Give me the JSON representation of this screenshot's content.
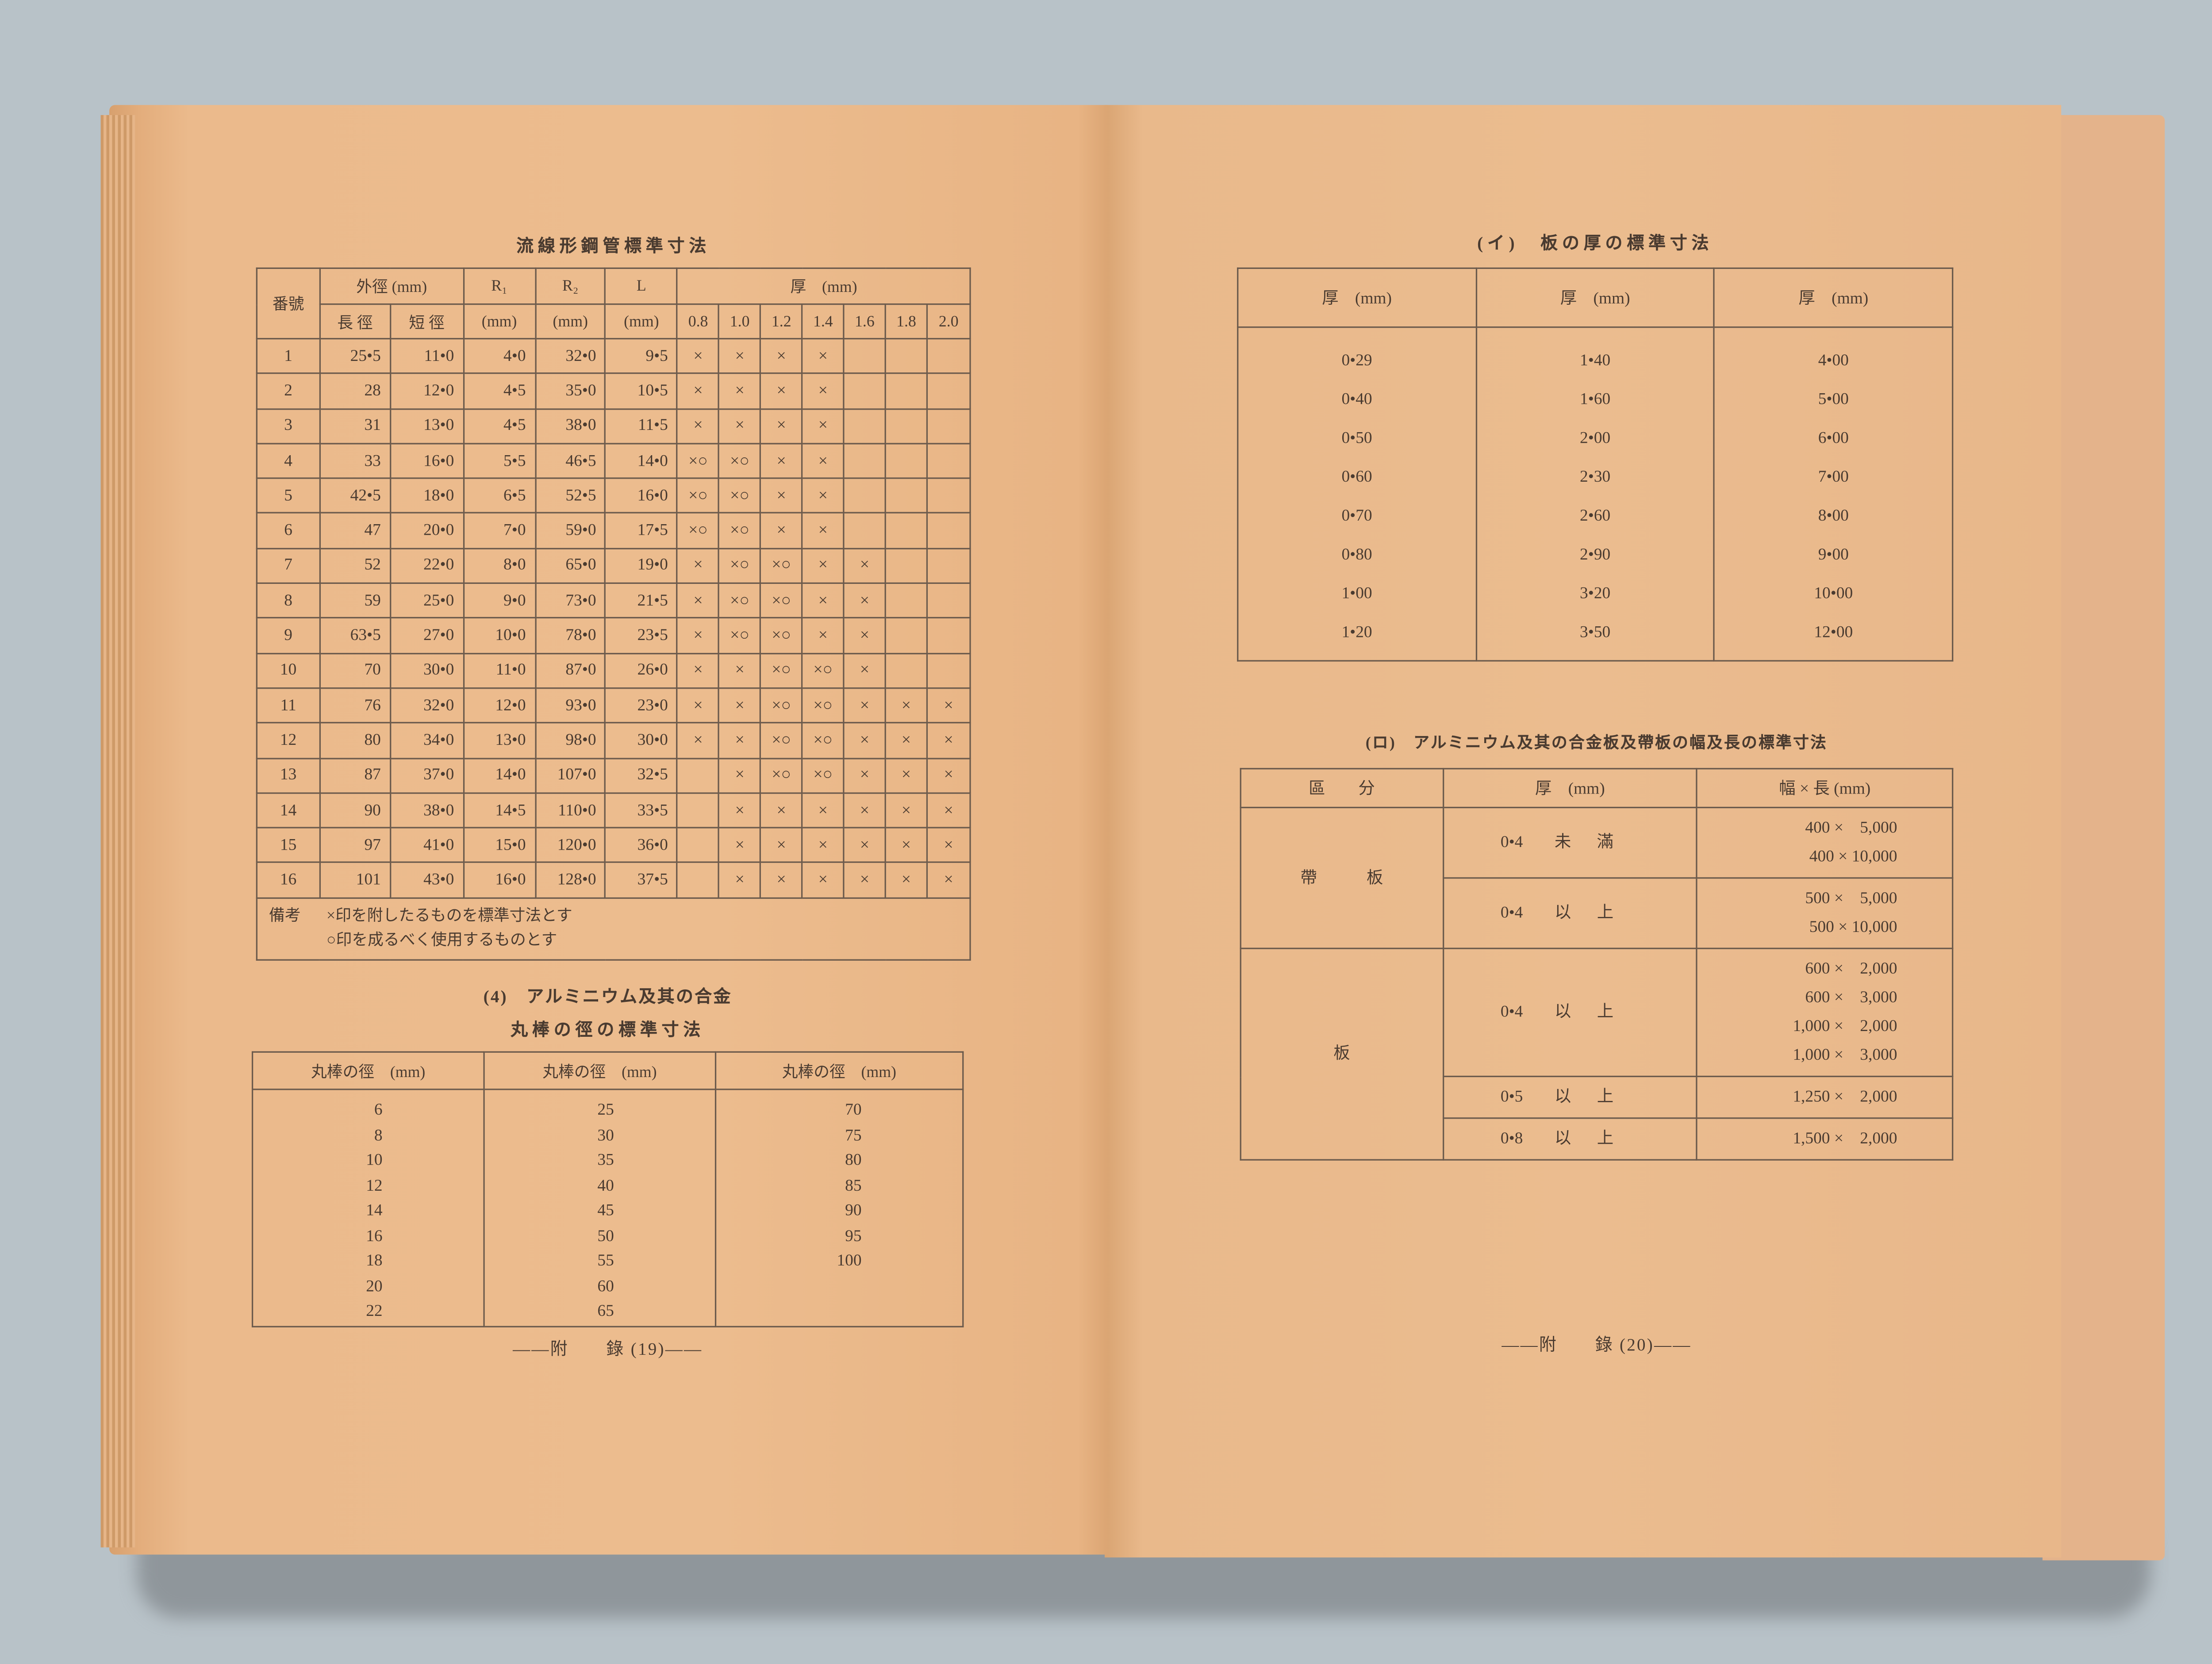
{
  "left_page": {
    "steel_tube_table": {
      "title": "流線形鋼管標準寸法",
      "headers": {
        "number": "番號",
        "outer_diameter": "外徑 (mm)",
        "major_diameter": "長 徑",
        "minor_diameter": "短 徑",
        "r1": "R₁",
        "r2": "R₂",
        "l": "L",
        "unit": "(mm)",
        "thickness": "厚　(mm)",
        "thickness_columns": [
          "0.8",
          "1.0",
          "1.2",
          "1.4",
          "1.6",
          "1.8",
          "2.0"
        ]
      },
      "rows": [
        {
          "no": "1",
          "major": "25•5",
          "minor": "11•0",
          "r1": "4•0",
          "r2": "32•0",
          "l": "9•5",
          "marks": [
            "×",
            "×",
            "×",
            "×",
            "",
            "",
            ""
          ]
        },
        {
          "no": "2",
          "major": "28",
          "minor": "12•0",
          "r1": "4•5",
          "r2": "35•0",
          "l": "10•5",
          "marks": [
            "×",
            "×",
            "×",
            "×",
            "",
            "",
            ""
          ]
        },
        {
          "no": "3",
          "major": "31",
          "minor": "13•0",
          "r1": "4•5",
          "r2": "38•0",
          "l": "11•5",
          "marks": [
            "×",
            "×",
            "×",
            "×",
            "",
            "",
            ""
          ]
        },
        {
          "no": "4",
          "major": "33",
          "minor": "16•0",
          "r1": "5•5",
          "r2": "46•5",
          "l": "14•0",
          "marks": [
            "×○",
            "×○",
            "×",
            "×",
            "",
            "",
            ""
          ]
        },
        {
          "no": "5",
          "major": "42•5",
          "minor": "18•0",
          "r1": "6•5",
          "r2": "52•5",
          "l": "16•0",
          "marks": [
            "×○",
            "×○",
            "×",
            "×",
            "",
            "",
            ""
          ]
        },
        {
          "no": "6",
          "major": "47",
          "minor": "20•0",
          "r1": "7•0",
          "r2": "59•0",
          "l": "17•5",
          "marks": [
            "×○",
            "×○",
            "×",
            "×",
            "",
            "",
            ""
          ]
        },
        {
          "no": "7",
          "major": "52",
          "minor": "22•0",
          "r1": "8•0",
          "r2": "65•0",
          "l": "19•0",
          "marks": [
            "×",
            "×○",
            "×○",
            "×",
            "×",
            "",
            ""
          ]
        },
        {
          "no": "8",
          "major": "59",
          "minor": "25•0",
          "r1": "9•0",
          "r2": "73•0",
          "l": "21•5",
          "marks": [
            "×",
            "×○",
            "×○",
            "×",
            "×",
            "",
            ""
          ]
        },
        {
          "no": "9",
          "major": "63•5",
          "minor": "27•0",
          "r1": "10•0",
          "r2": "78•0",
          "l": "23•5",
          "marks": [
            "×",
            "×○",
            "×○",
            "×",
            "×",
            "",
            ""
          ]
        },
        {
          "no": "10",
          "major": "70",
          "minor": "30•0",
          "r1": "11•0",
          "r2": "87•0",
          "l": "26•0",
          "marks": [
            "×",
            "×",
            "×○",
            "×○",
            "×",
            "",
            ""
          ]
        },
        {
          "no": "11",
          "major": "76",
          "minor": "32•0",
          "r1": "12•0",
          "r2": "93•0",
          "l": "23•0",
          "marks": [
            "×",
            "×",
            "×○",
            "×○",
            "×",
            "×",
            "×"
          ]
        },
        {
          "no": "12",
          "major": "80",
          "minor": "34•0",
          "r1": "13•0",
          "r2": "98•0",
          "l": "30•0",
          "marks": [
            "×",
            "×",
            "×○",
            "×○",
            "×",
            "×",
            "×"
          ]
        },
        {
          "no": "13",
          "major": "87",
          "minor": "37•0",
          "r1": "14•0",
          "r2": "107•0",
          "l": "32•5",
          "marks": [
            "",
            "×",
            "×○",
            "×○",
            "×",
            "×",
            "×"
          ]
        },
        {
          "no": "14",
          "major": "90",
          "minor": "38•0",
          "r1": "14•5",
          "r2": "110•0",
          "l": "33•5",
          "marks": [
            "",
            "×",
            "×",
            "×",
            "×",
            "×",
            "×"
          ]
        },
        {
          "no": "15",
          "major": "97",
          "minor": "41•0",
          "r1": "15•0",
          "r2": "120•0",
          "l": "36•0",
          "marks": [
            "",
            "×",
            "×",
            "×",
            "×",
            "×",
            "×"
          ]
        },
        {
          "no": "16",
          "major": "101",
          "minor": "43•0",
          "r1": "16•0",
          "r2": "128•0",
          "l": "37•5",
          "marks": [
            "",
            "×",
            "×",
            "×",
            "×",
            "×",
            "×"
          ]
        }
      ],
      "notes": {
        "label": "備考",
        "line1": "×印を附したるものを標準寸法とす",
        "line2": "○印を成るべく使用するものとす"
      }
    },
    "section_title": "(4)　アルミニウム及其の合金",
    "round_bar_table": {
      "title": "丸棒の徑の標準寸法",
      "headers": [
        "丸棒の徑　(mm)",
        "丸棒の徑　(mm)",
        "丸棒の徑　(mm)"
      ],
      "columns": [
        [
          "6",
          "8",
          "10",
          "12",
          "14",
          "16",
          "18",
          "20",
          "22"
        ],
        [
          "25",
          "30",
          "35",
          "40",
          "45",
          "50",
          "55",
          "60",
          "65"
        ],
        [
          "70",
          "75",
          "80",
          "85",
          "90",
          "95",
          "100"
        ]
      ]
    },
    "footer": "――附　　錄 (19)――"
  },
  "right_page": {
    "plate_thickness_table": {
      "title": "(イ)　板の厚の標準寸法",
      "headers": [
        "厚　(mm)",
        "厚　(mm)",
        "厚　(mm)"
      ],
      "columns": [
        [
          "0•29",
          "0•40",
          "0•50",
          "0•60",
          "0•70",
          "0•80",
          "1•00",
          "1•20"
        ],
        [
          "1•40",
          "1•60",
          "2•00",
          "2•30",
          "2•60",
          "2•90",
          "3•20",
          "3•50"
        ],
        [
          "4•00",
          "5•00",
          "6•00",
          "7•00",
          "8•00",
          "9•00",
          "10•00",
          "12•00"
        ]
      ]
    },
    "strip_sheet_table": {
      "title": "(ロ)　アルミニウム及其の合金板及帶板の幅及長の標準寸法",
      "headers": [
        "區　　分",
        "厚　(mm)",
        "幅 × 長 (mm)"
      ],
      "groups": [
        {
          "category": "帶　　　板",
          "rows": [
            {
              "thickness": "0•4",
              "qualifier": "未滿",
              "sizes": [
                "400 ×　5,000",
                "400 × 10,000"
              ]
            },
            {
              "thickness": "0•4",
              "qualifier": "以上",
              "sizes": [
                "500 ×　5,000",
                "500 × 10,000"
              ]
            }
          ]
        },
        {
          "category": "板",
          "rows": [
            {
              "thickness": "0•4",
              "qualifier": "以上",
              "sizes": [
                "600 ×　2,000",
                "600 ×　3,000",
                "1,000 ×　2,000",
                "1,000 ×　3,000"
              ]
            },
            {
              "thickness": "0•5",
              "qualifier": "以上",
              "sizes": [
                "1,250 ×　2,000"
              ]
            },
            {
              "thickness": "0•8",
              "qualifier": "以上",
              "sizes": [
                "1,500 ×　2,000"
              ]
            }
          ]
        }
      ]
    },
    "footer": "――附　　錄 (20)――"
  },
  "colors": {
    "background": "#b8c2c8",
    "paper": "#eab88a",
    "ink": "#4a3b30"
  }
}
